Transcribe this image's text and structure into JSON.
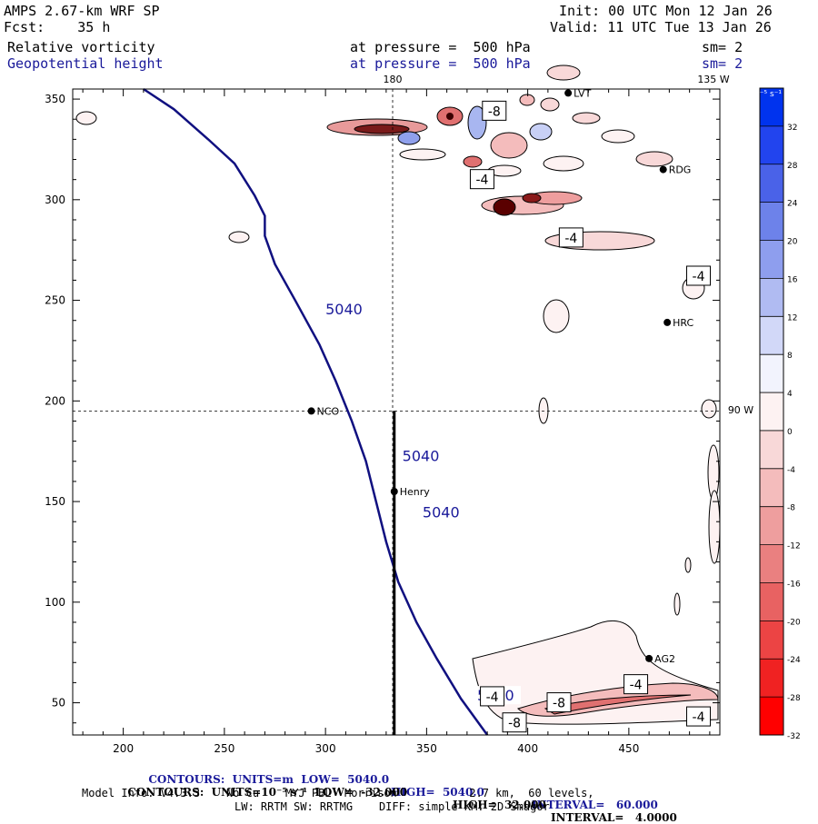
{
  "header": {
    "title": "AMPS 2.67-km WRF SP",
    "fcst": "Fcst:    35 h",
    "init": "Init: 00 UTC Mon 12 Jan 26",
    "valid": "Valid: 11 UTC Tue 13 Jan 26",
    "field1_name": "Relative vorticity",
    "field1_level": "at pressure =  500 hPa",
    "field1_sm": "sm= 2",
    "field2_name": "Geopotential height",
    "field2_level": "at pressure =  500 hPa",
    "field2_sm": "sm= 2"
  },
  "chart_data": {
    "type": "contour-map",
    "xlim": [
      175,
      495
    ],
    "ylim": [
      34,
      355
    ],
    "x_ticks": [
      200,
      250,
      300,
      350,
      400,
      450
    ],
    "y_ticks": [
      50,
      100,
      150,
      200,
      250,
      300,
      350
    ],
    "meridian_labels": {
      "m180": "180",
      "m135": "135 W",
      "m90": "90 W"
    },
    "height_contour": {
      "value": 5040,
      "label": "5040",
      "points": [
        [
          210,
          355
        ],
        [
          225,
          345
        ],
        [
          242,
          330
        ],
        [
          255,
          318
        ],
        [
          265,
          302
        ],
        [
          270,
          292
        ],
        [
          270,
          282
        ],
        [
          275,
          268
        ],
        [
          285,
          250
        ],
        [
          297,
          228
        ],
        [
          305,
          210
        ],
        [
          313,
          190
        ],
        [
          320,
          170
        ],
        [
          325,
          150
        ],
        [
          330,
          130
        ],
        [
          336,
          110
        ],
        [
          345,
          90
        ],
        [
          355,
          72
        ],
        [
          367,
          52
        ],
        [
          380,
          34
        ]
      ],
      "label_positions": [
        [
          300,
          244
        ],
        [
          338,
          171
        ],
        [
          348,
          143
        ],
        [
          375,
          52
        ]
      ]
    },
    "stations": [
      {
        "name": "NCO",
        "x": 293,
        "y": 195
      },
      {
        "name": "Henry",
        "x": 334,
        "y": 155
      },
      {
        "name": "RDG",
        "x": 467,
        "y": 315
      },
      {
        "name": "HRC",
        "x": 469,
        "y": 239
      },
      {
        "name": "AG2",
        "x": 460,
        "y": 72
      },
      {
        "name": "LVT",
        "x": 420,
        "y": 353
      }
    ],
    "cross_section": {
      "x": 334,
      "y_from": 34,
      "y_to": 195
    },
    "vorticity_labels": [
      {
        "text": "-8",
        "x": 383,
        "y": 344
      },
      {
        "text": "-4",
        "x": 377,
        "y": 310
      },
      {
        "text": "-4",
        "x": 421,
        "y": 281
      },
      {
        "text": "-4",
        "x": 484,
        "y": 262
      },
      {
        "text": "-4",
        "x": 382,
        "y": 53
      },
      {
        "text": "-8",
        "x": 415,
        "y": 50
      },
      {
        "text": "-8",
        "x": 393,
        "y": 40
      },
      {
        "text": "-4",
        "x": 453,
        "y": 59
      },
      {
        "text": "-4",
        "x": 484,
        "y": 43
      }
    ],
    "colorbar": {
      "unit": "10⁻⁵ s⁻¹",
      "levels": [
        36,
        32,
        28,
        24,
        20,
        16,
        12,
        8,
        4,
        0,
        -4,
        -8,
        -12,
        -16,
        -20,
        -24,
        -28,
        -32,
        -36
      ],
      "tick_labels": [
        "32",
        "28",
        "24",
        "20",
        "16",
        "12",
        "8",
        "4",
        "0",
        "-4",
        "-8",
        "-12",
        "-16",
        "-20",
        "-24",
        "-28",
        "-32"
      ],
      "colors": [
        "#0033ee",
        "#2244ee",
        "#4a62e8",
        "#6d82ea",
        "#8e9eee",
        "#b0bbf2",
        "#d2d8f8",
        "#f2f3fd",
        "#fdf2f2",
        "#f8d8d8",
        "#f4bcbc",
        "#ee9e9e",
        "#ea8080",
        "#e86262",
        "#ec4444",
        "#f02222",
        "#ff0000"
      ]
    }
  },
  "footer": {
    "line1_a": "CONTOURS:  UNITS=m  LOW=  5040.0",
    "line1_b": "HIGH=  5040.0",
    "line1_c": "INTERVAL=   60.000",
    "line2_a": "CONTOURS:  UNITS=10⁻⁵ s⁻¹  LOW=  -32.000",
    "line2_b": "HIGH=  32.000",
    "line2_c": "INTERVAL=   4.0000",
    "line3": "Model Info: V4.3.3    No Cu    MYJ PBL  Morrison           2.7 km,  60 levels,",
    "line4": "LW: RRTM SW: RRTMG    DIFF: simple KM: 2D Smagor"
  }
}
